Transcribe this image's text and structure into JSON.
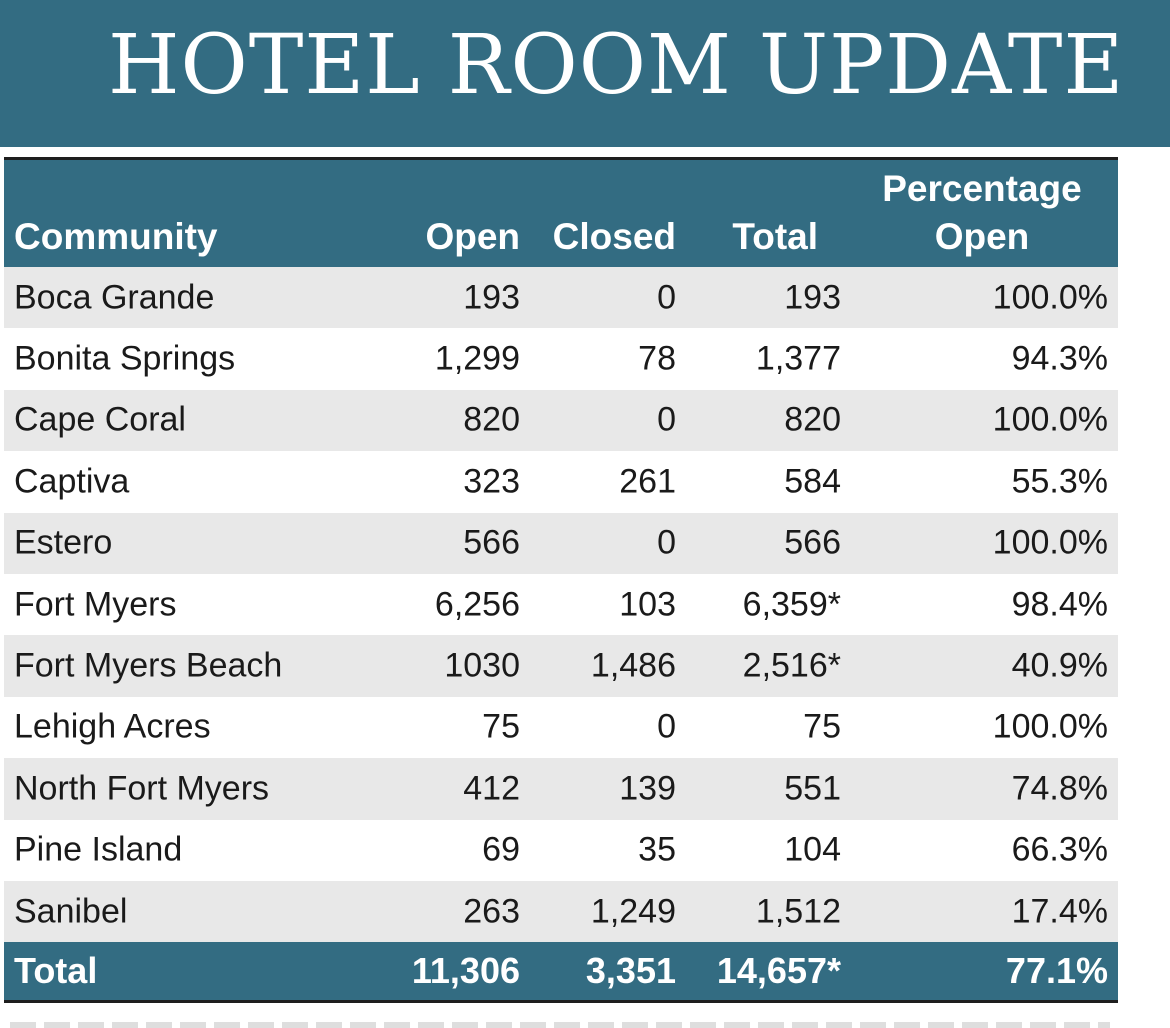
{
  "title": "HOTEL ROOM UPDATE",
  "headers": {
    "community": "Community",
    "open": "Open",
    "closed": "Closed",
    "total": "Total",
    "pct_line1": "Percentage",
    "pct_line2": "Open"
  },
  "rows": [
    {
      "community": "Boca Grande",
      "open": "193",
      "closed": "0",
      "total": "193",
      "pct": "100.0%"
    },
    {
      "community": "Bonita Springs",
      "open": "1,299",
      "closed": "78",
      "total": "1,377",
      "pct": "94.3%"
    },
    {
      "community": "Cape Coral",
      "open": "820",
      "closed": "0",
      "total": "820",
      "pct": "100.0%"
    },
    {
      "community": "Captiva",
      "open": "323",
      "closed": "261",
      "total": "584",
      "pct": "55.3%"
    },
    {
      "community": "Estero",
      "open": "566",
      "closed": "0",
      "total": "566",
      "pct": "100.0%"
    },
    {
      "community": "Fort Myers",
      "open": "6,256",
      "closed": "103",
      "total": "6,359*",
      "pct": "98.4%"
    },
    {
      "community": "Fort Myers Beach",
      "open": "1030",
      "closed": "1,486",
      "total": "2,516*",
      "pct": "40.9%"
    },
    {
      "community": "Lehigh Acres",
      "open": "75",
      "closed": "0",
      "total": "75",
      "pct": "100.0%"
    },
    {
      "community": "North Fort Myers",
      "open": "412",
      "closed": "139",
      "total": "551",
      "pct": "74.8%"
    },
    {
      "community": "Pine Island",
      "open": "69",
      "closed": "35",
      "total": "104",
      "pct": "66.3%"
    },
    {
      "community": "Sanibel",
      "open": "263",
      "closed": "1,249",
      "total": "1,512",
      "pct": "17.4%"
    }
  ],
  "totals": {
    "community": "Total",
    "open": "11,306",
    "closed": "3,351",
    "total": "14,657*",
    "pct": "77.1%"
  },
  "colors": {
    "header": "#336c82",
    "shade": "#e8e8e8"
  }
}
